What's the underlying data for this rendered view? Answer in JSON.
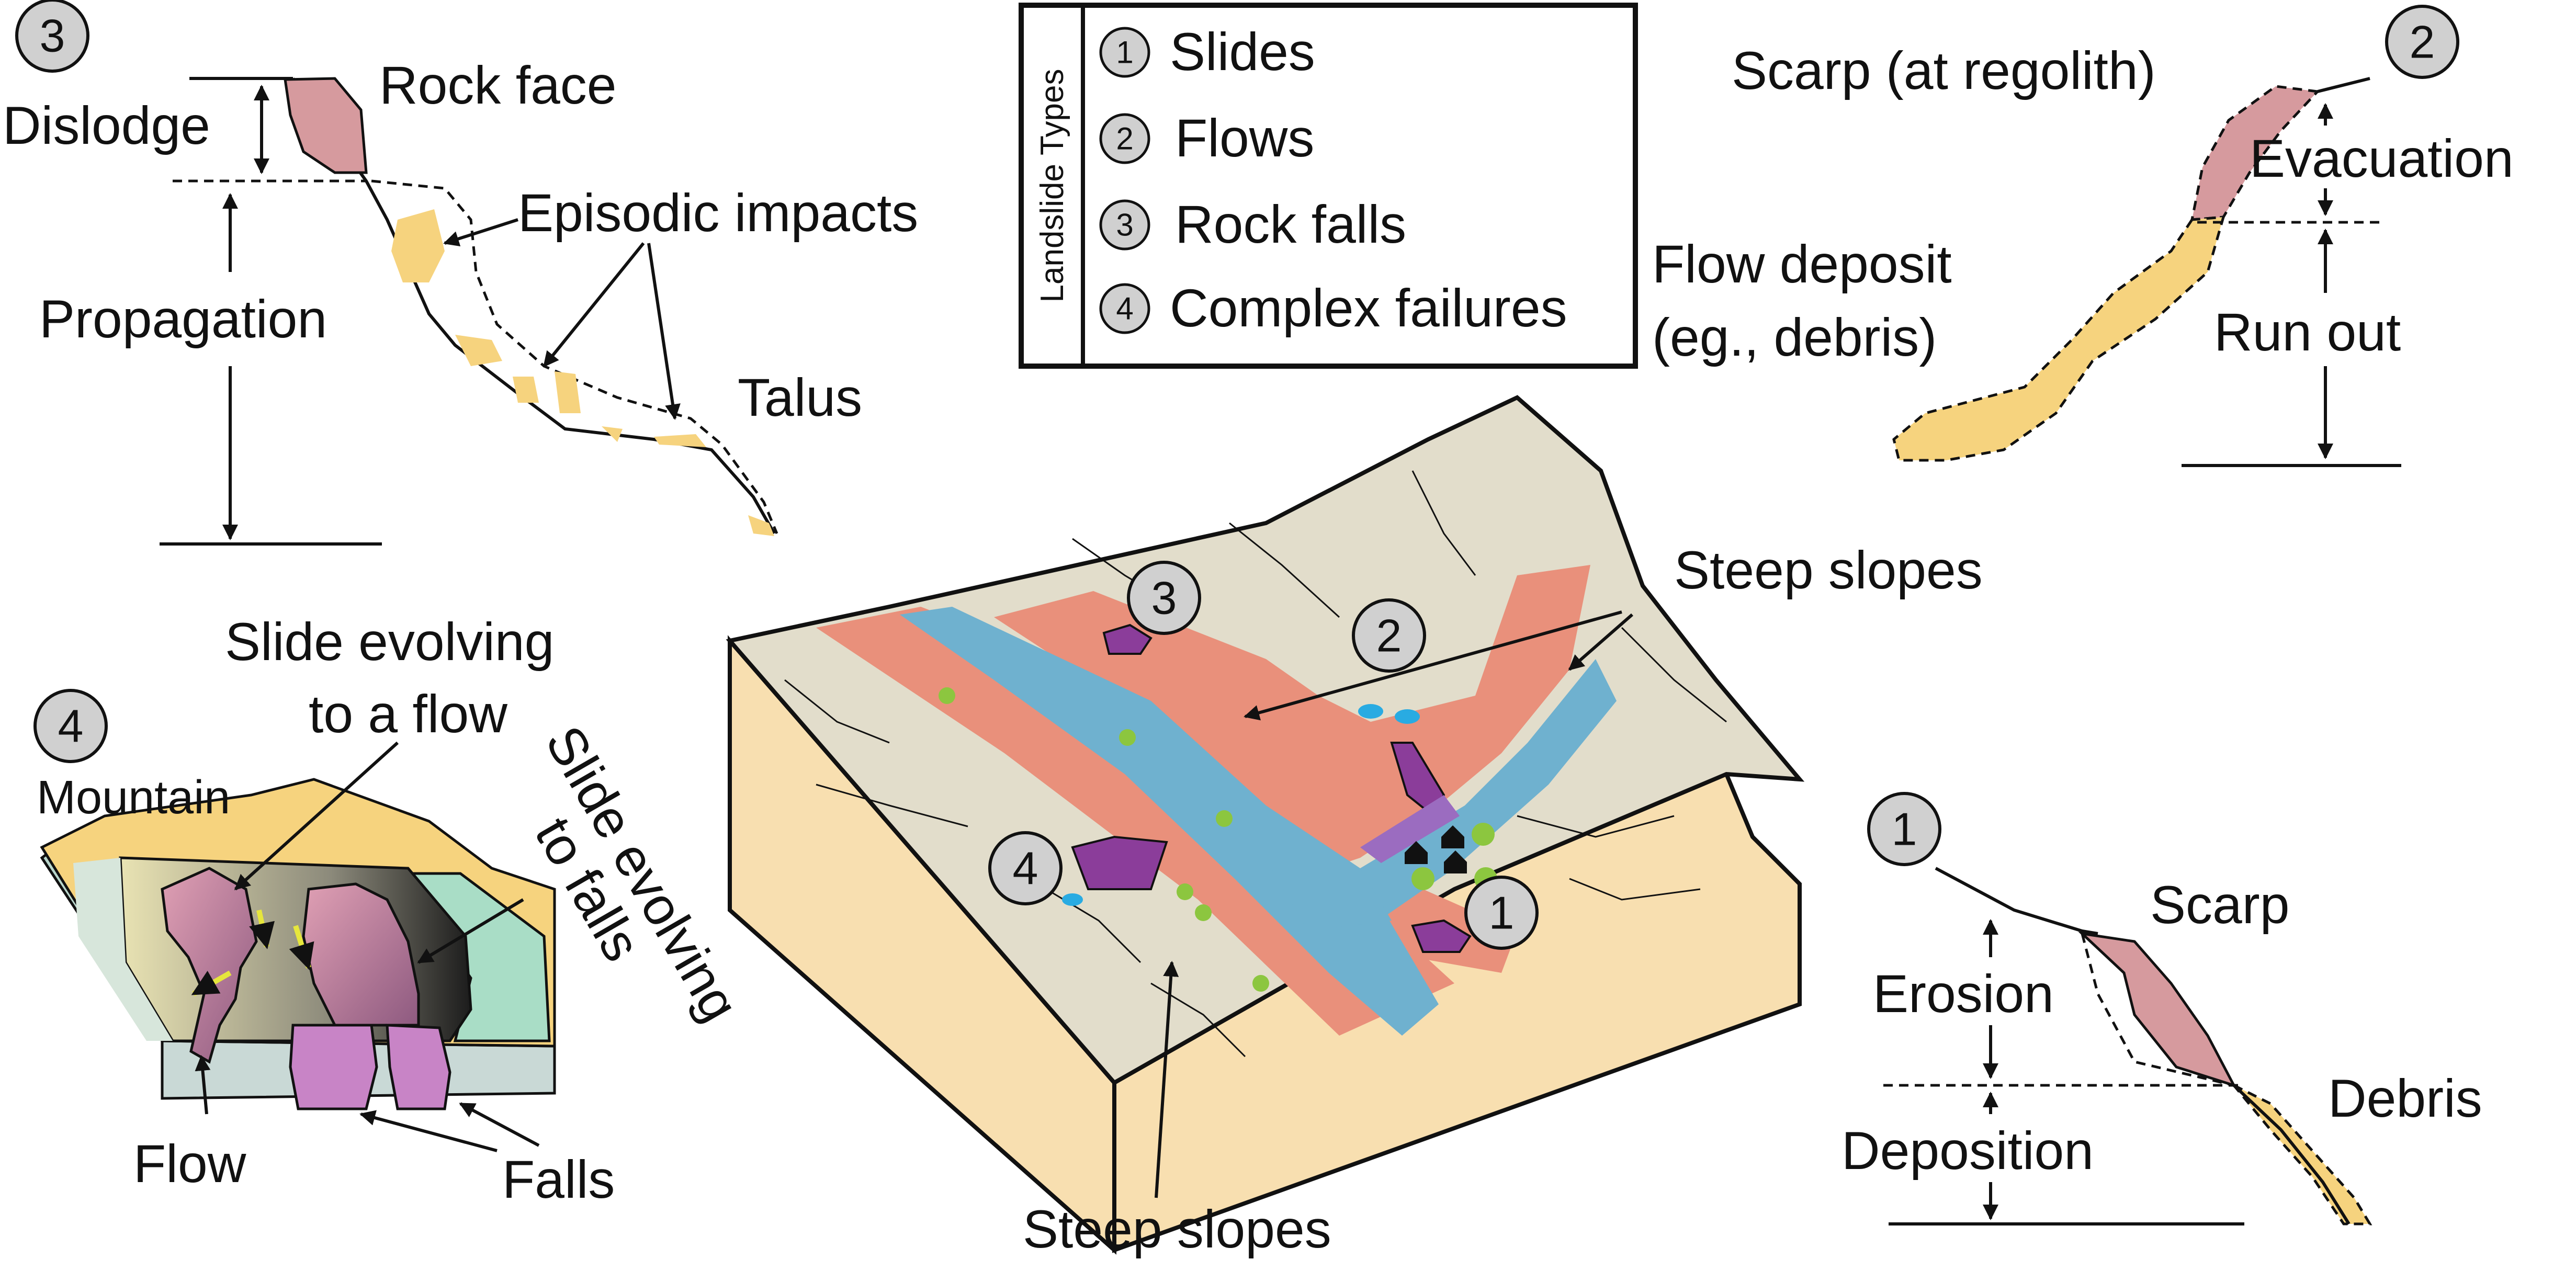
{
  "legend": {
    "title": "Landslide Types",
    "items": [
      {
        "num": "1",
        "label": "Slides"
      },
      {
        "num": "2",
        "label": "Flows"
      },
      {
        "num": "3",
        "label": "Rock falls"
      },
      {
        "num": "4",
        "label": "Complex failures"
      }
    ]
  },
  "panel_rockfall": {
    "num": "3",
    "rock_face": "Rock face",
    "dislodge": "Dislodge",
    "episodic_impacts": "Episodic impacts",
    "propagation": "Propagation",
    "talus": "Talus"
  },
  "panel_flow": {
    "num": "2",
    "scarp": "Scarp (at regolith)",
    "evacuation": "Evacuation",
    "flow_deposit_1": "Flow deposit",
    "flow_deposit_2": "(eg., debris)",
    "run_out": "Run out"
  },
  "panel_complex": {
    "num": "4",
    "mountain": "Mountain",
    "slide_to_flow_1": "Slide evolving",
    "slide_to_flow_2": "to a flow",
    "slide_to_falls_1": "Slide evolving",
    "slide_to_falls_2": "to falls",
    "flow": "Flow",
    "falls": "Falls"
  },
  "panel_slide": {
    "num": "1",
    "scarp": "Scarp",
    "erosion": "Erosion",
    "deposition": "Deposition",
    "debris": "Debris"
  },
  "block": {
    "steep_slopes_top": "Steep slopes",
    "steep_slopes_bottom": "Steep slopes",
    "markers": [
      "3",
      "2",
      "4",
      "1"
    ]
  },
  "colors": {
    "rock_pink": "#d69a9e",
    "deposit_yellow": "#f6d37e",
    "terrain": "#e2ddcb",
    "slope_salmon": "#e9907b",
    "river_blue": "#6fb1cf",
    "soil_front": "#f8dfb0",
    "landslide_purple": "#8b3d9a",
    "tree_green": "#8cc63f",
    "marker_grey": "#d0d0d0"
  }
}
